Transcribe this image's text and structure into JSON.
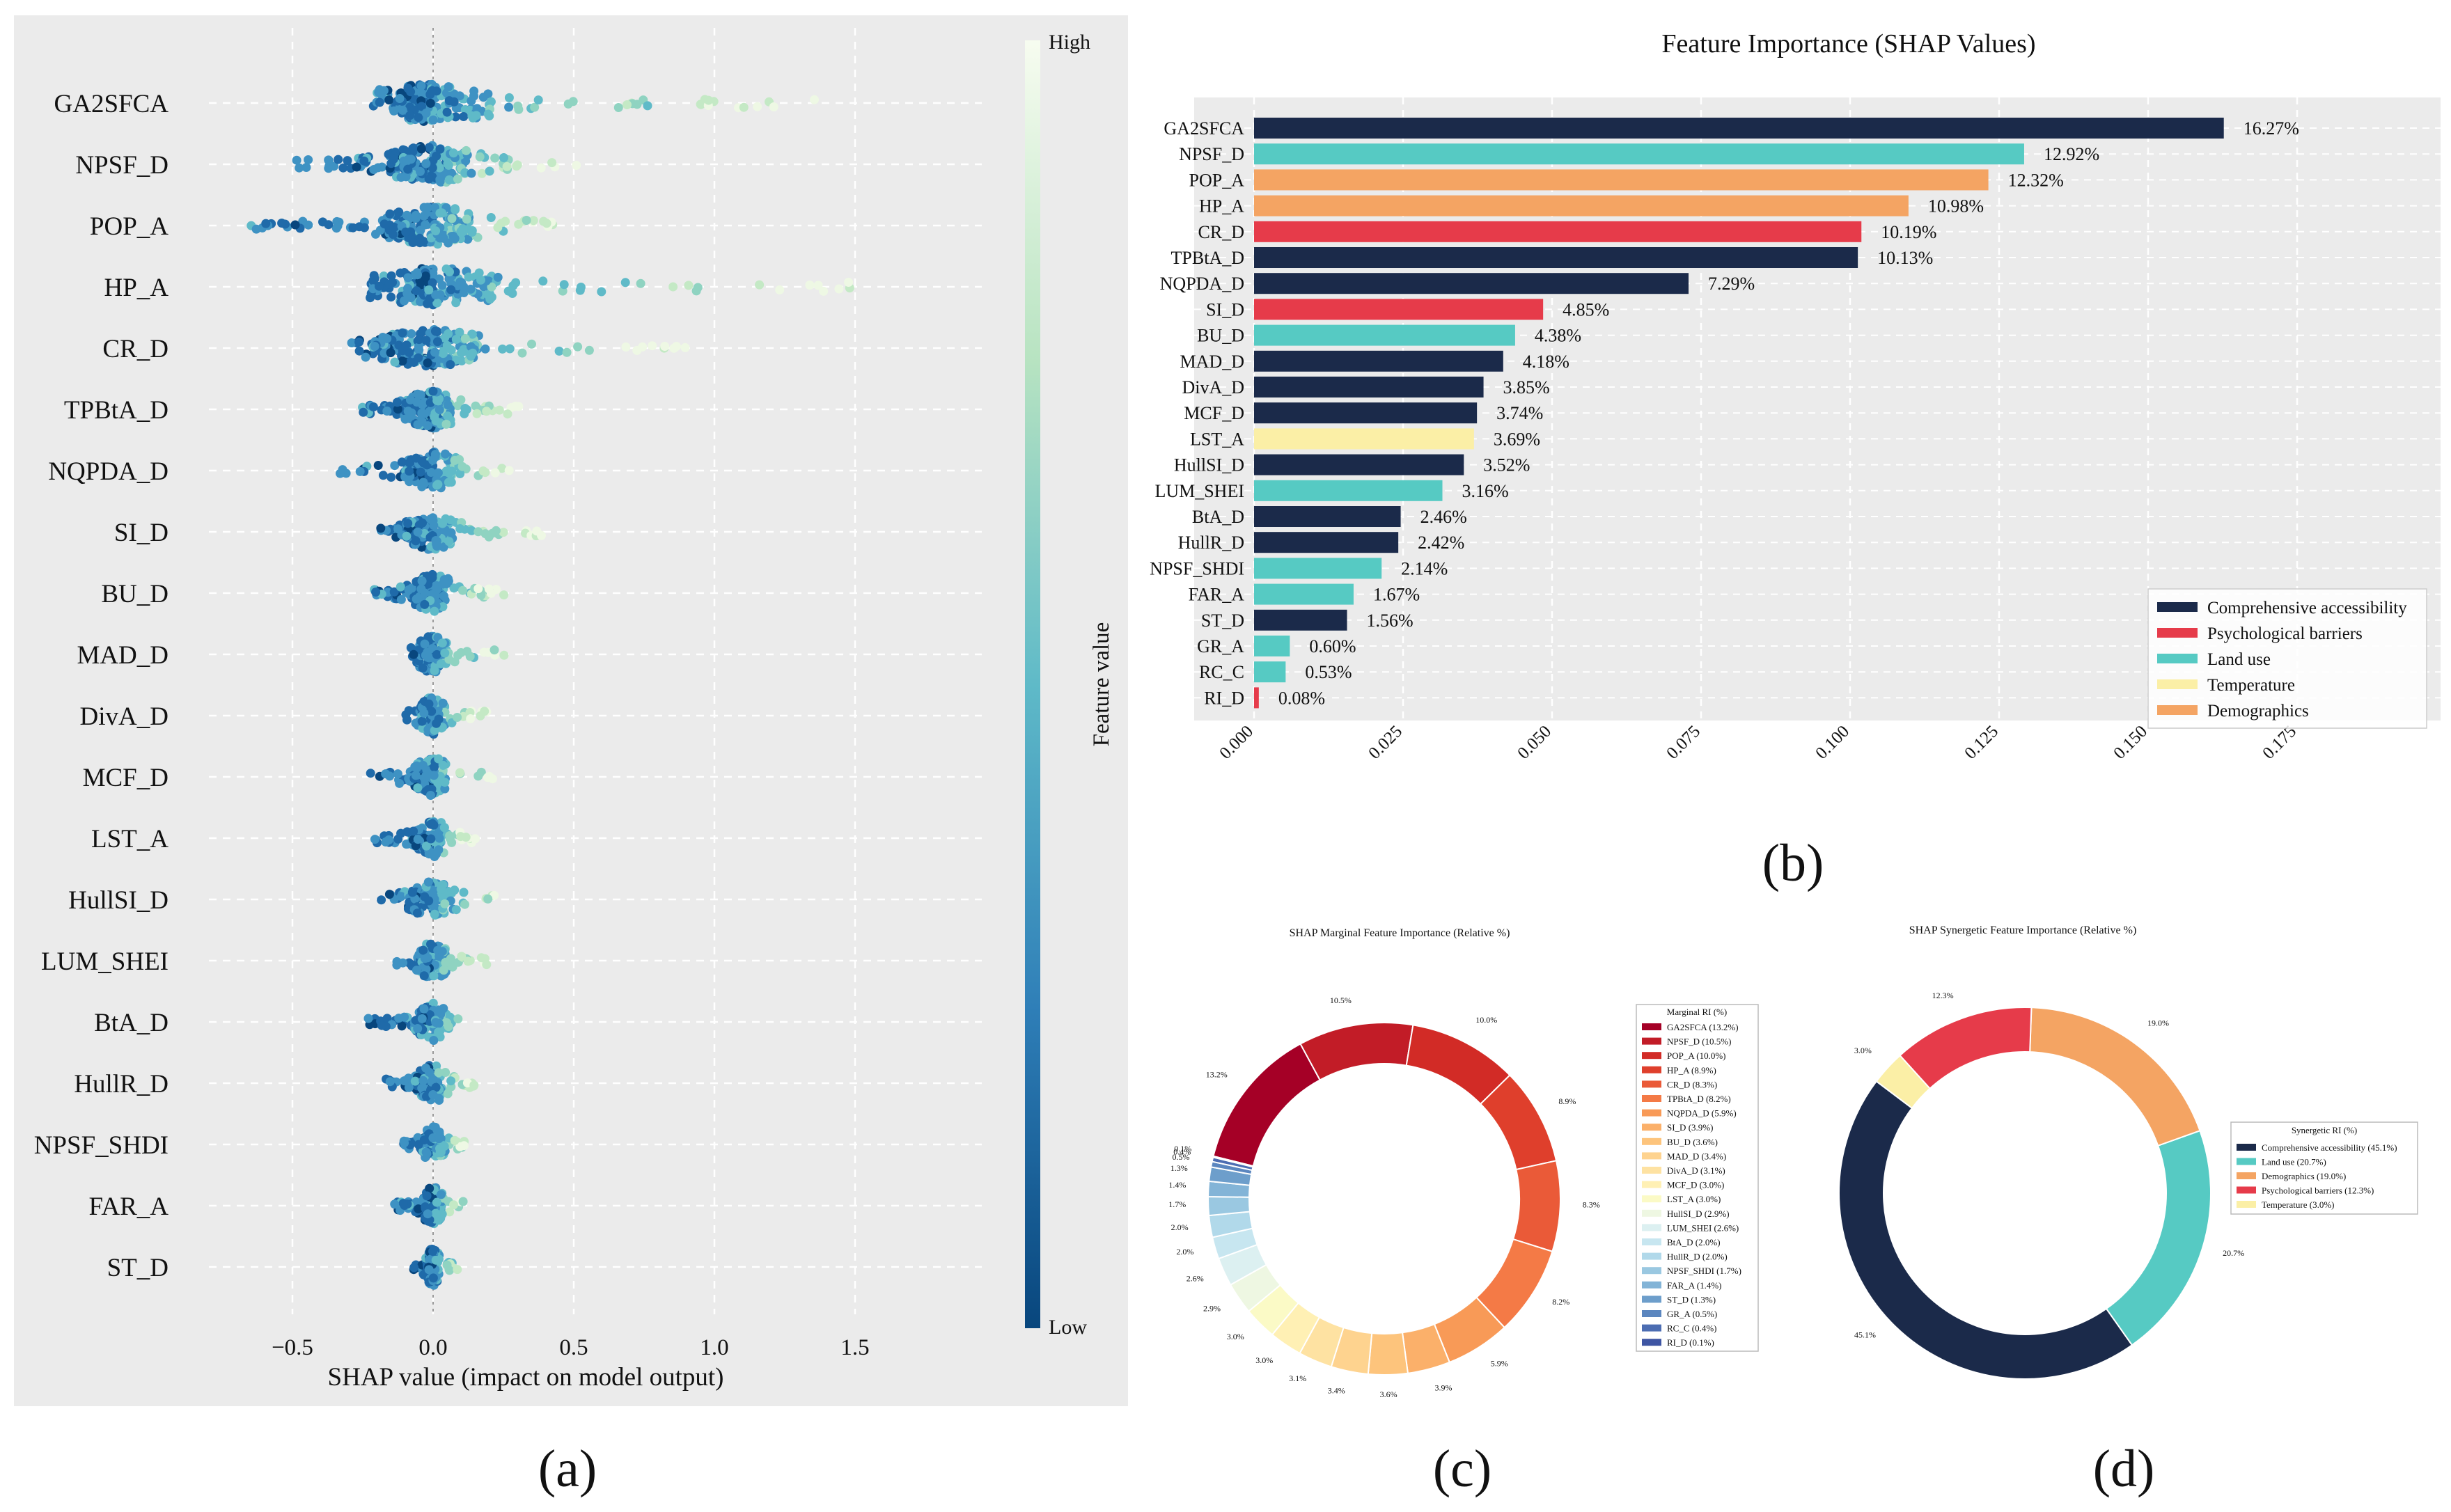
{
  "panels": {
    "a": "(a)",
    "b": "(b)",
    "c": "(c)",
    "d": "(d)"
  },
  "colors": {
    "comprehensive": "#1b2a4a",
    "psychological": "#e63b4a",
    "landuse": "#56cac3",
    "temperature": "#fbefa6",
    "demographics": "#f4a463",
    "panel_bg": "#ebebeb"
  },
  "chart_data": [
    {
      "id": "a",
      "type": "scatter",
      "subtype": "shap-beeswarm",
      "features": [
        "GA2SFCA",
        "NPSF_D",
        "POP_A",
        "HP_A",
        "CR_D",
        "TPBtA_D",
        "NQPDA_D",
        "SI_D",
        "BU_D",
        "MAD_D",
        "DivA_D",
        "MCF_D",
        "LST_A",
        "HullSI_D",
        "LUM_SHEI",
        "BtA_D",
        "HullR_D",
        "NPSF_SHDI",
        "FAR_A",
        "ST_D"
      ],
      "spread": [
        {
          "lo": -0.1,
          "hi": 1.42
        },
        {
          "lo": -0.5,
          "hi": 0.52
        },
        {
          "lo": -0.67,
          "hi": 0.48
        },
        {
          "lo": -0.12,
          "hi": 1.5
        },
        {
          "lo": -0.32,
          "hi": 0.92
        },
        {
          "lo": -0.28,
          "hi": 0.32
        },
        {
          "lo": -0.35,
          "hi": 0.28
        },
        {
          "lo": -0.2,
          "hi": 0.4
        },
        {
          "lo": -0.22,
          "hi": 0.27
        },
        {
          "lo": -0.08,
          "hi": 0.28
        },
        {
          "lo": -0.1,
          "hi": 0.2
        },
        {
          "lo": -0.23,
          "hi": 0.24
        },
        {
          "lo": -0.21,
          "hi": 0.15
        },
        {
          "lo": -0.2,
          "hi": 0.29
        },
        {
          "lo": -0.13,
          "hi": 0.2
        },
        {
          "lo": -0.25,
          "hi": 0.09
        },
        {
          "lo": -0.17,
          "hi": 0.17
        },
        {
          "lo": -0.11,
          "hi": 0.12
        },
        {
          "lo": -0.14,
          "hi": 0.12
        },
        {
          "lo": -0.07,
          "hi": 0.09
        }
      ],
      "xlabel": "SHAP value (impact on model output)",
      "xticks": [
        -0.5,
        0.0,
        0.5,
        1.0,
        1.5
      ],
      "xtick_labels": [
        "−0.5",
        "0.0",
        "0.5",
        "1.0",
        "1.5"
      ],
      "xlim": [
        -0.8,
        1.9
      ],
      "colorbar": {
        "label": "Feature value",
        "high": "High",
        "low": "Low"
      }
    },
    {
      "id": "b",
      "type": "bar",
      "orientation": "horizontal",
      "title": "Feature Importance (SHAP Values)",
      "categories": [
        "GA2SFCA",
        "NPSF_D",
        "POP_A",
        "HP_A",
        "CR_D",
        "TPBtA_D",
        "NQPDA_D",
        "SI_D",
        "BU_D",
        "MAD_D",
        "DivA_D",
        "MCF_D",
        "LST_A",
        "HullSI_D",
        "LUM_SHEI",
        "BtA_D",
        "HullR_D",
        "NPSF_SHDI",
        "FAR_A",
        "ST_D",
        "GR_A",
        "RC_C",
        "RI_D"
      ],
      "values": [
        0.1627,
        0.1292,
        0.1232,
        0.1098,
        0.1019,
        0.1013,
        0.0729,
        0.0485,
        0.0438,
        0.0418,
        0.0385,
        0.0374,
        0.0369,
        0.0352,
        0.0316,
        0.0246,
        0.0242,
        0.0214,
        0.0167,
        0.0156,
        0.006,
        0.0053,
        0.0008
      ],
      "labels": [
        "16.27%",
        "12.92%",
        "12.32%",
        "10.98%",
        "10.19%",
        "10.13%",
        "7.29%",
        "4.85%",
        "4.38%",
        "4.18%",
        "3.85%",
        "3.74%",
        "3.69%",
        "3.52%",
        "3.16%",
        "2.46%",
        "2.42%",
        "2.14%",
        "1.67%",
        "1.56%",
        "0.60%",
        "0.53%",
        "0.08%"
      ],
      "groups": [
        "comprehensive",
        "landuse",
        "demographics",
        "demographics",
        "psychological",
        "comprehensive",
        "comprehensive",
        "psychological",
        "landuse",
        "comprehensive",
        "comprehensive",
        "comprehensive",
        "temperature",
        "comprehensive",
        "landuse",
        "comprehensive",
        "comprehensive",
        "landuse",
        "landuse",
        "comprehensive",
        "landuse",
        "landuse",
        "psychological"
      ],
      "xticks": [
        0.0,
        0.025,
        0.05,
        0.075,
        0.1,
        0.125,
        0.15,
        0.175
      ],
      "xtick_labels": [
        "0.000",
        "0.025",
        "0.050",
        "0.075",
        "0.100",
        "0.125",
        "0.150",
        "0.175"
      ],
      "xlim": [
        0,
        0.195
      ],
      "legend": [
        {
          "group": "comprehensive",
          "label": "Comprehensive accessibility"
        },
        {
          "group": "psychological",
          "label": "Psychological barriers"
        },
        {
          "group": "landuse",
          "label": "Land use"
        },
        {
          "group": "temperature",
          "label": "Temperature"
        },
        {
          "group": "demographics",
          "label": "Demographics"
        }
      ]
    },
    {
      "id": "c",
      "type": "pie",
      "subtype": "donut",
      "title": "SHAP Marginal Feature Importance (Relative %)",
      "legend_title": "Marginal RI (%)",
      "slices": [
        {
          "label": "GA2SFCA (13.2%)",
          "value": 13.2,
          "pct": "13.2%",
          "color": "#a50026"
        },
        {
          "label": "NPSF_D (10.5%)",
          "value": 10.5,
          "pct": "10.5%",
          "color": "#c21c27"
        },
        {
          "label": "POP_A (10.0%)",
          "value": 10.0,
          "pct": "10.0%",
          "color": "#d22b26"
        },
        {
          "label": "HP_A (8.9%)",
          "value": 8.9,
          "pct": "8.9%",
          "color": "#df3f2c"
        },
        {
          "label": "CR_D (8.3%)",
          "value": 8.3,
          "pct": "8.3%",
          "color": "#ea5a38"
        },
        {
          "label": "TPBtA_D (8.2%)",
          "value": 8.2,
          "pct": "8.2%",
          "color": "#f47a46"
        },
        {
          "label": "NQPDA_D (5.9%)",
          "value": 5.9,
          "pct": "5.9%",
          "color": "#f89a57"
        },
        {
          "label": "SI_D (3.9%)",
          "value": 3.9,
          "pct": "3.9%",
          "color": "#fbb06a"
        },
        {
          "label": "BU_D (3.6%)",
          "value": 3.6,
          "pct": "3.6%",
          "color": "#fdc47c"
        },
        {
          "label": "MAD_D (3.4%)",
          "value": 3.4,
          "pct": "3.4%",
          "color": "#fed38f"
        },
        {
          "label": "DivA_D (3.1%)",
          "value": 3.1,
          "pct": "3.1%",
          "color": "#fee2a2"
        },
        {
          "label": "MCF_D (3.0%)",
          "value": 3.0,
          "pct": "3.0%",
          "color": "#fff0b4"
        },
        {
          "label": "LST_A (3.0%)",
          "value": 3.0,
          "pct": "3.0%",
          "color": "#fbfac6"
        },
        {
          "label": "HullSI_D (2.9%)",
          "value": 2.9,
          "pct": "2.9%",
          "color": "#eef7e2"
        },
        {
          "label": "LUM_SHEI (2.6%)",
          "value": 2.6,
          "pct": "2.6%",
          "color": "#dcf0f1"
        },
        {
          "label": "BtA_D (2.0%)",
          "value": 2.0,
          "pct": "2.0%",
          "color": "#c7e6f0"
        },
        {
          "label": "HullR_D (2.0%)",
          "value": 2.0,
          "pct": "2.0%",
          "color": "#b1d9ea"
        },
        {
          "label": "NPSF_SHDI (1.7%)",
          "value": 1.7,
          "pct": "1.7%",
          "color": "#9ac8e1"
        },
        {
          "label": "FAR_A (1.4%)",
          "value": 1.4,
          "pct": "1.4%",
          "color": "#83b4d7"
        },
        {
          "label": "ST_D (1.3%)",
          "value": 1.3,
          "pct": "1.3%",
          "color": "#6d9ecb"
        },
        {
          "label": "GR_A (0.5%)",
          "value": 0.5,
          "pct": "0.5%",
          "color": "#5b86bf"
        },
        {
          "label": "RC_C (0.4%)",
          "value": 0.4,
          "pct": "0.4%",
          "color": "#4c6db2"
        },
        {
          "label": "RI_D (0.1%)",
          "value": 0.1,
          "pct": "0.1%",
          "color": "#3e55a3"
        }
      ]
    },
    {
      "id": "d",
      "type": "pie",
      "subtype": "donut",
      "title": "SHAP Synergetic Feature Importance (Relative %)",
      "legend_title": "Synergetic RI (%)",
      "slices": [
        {
          "label": "Comprehensive accessibility (45.1%)",
          "value": 45.1,
          "pct": "45.1%",
          "color": "#1b2a4a"
        },
        {
          "label": "Land use (20.7%)",
          "value": 20.7,
          "pct": "20.7%",
          "color": "#56cac3"
        },
        {
          "label": "Demographics (19.0%)",
          "value": 19.0,
          "pct": "19.0%",
          "color": "#f4a463"
        },
        {
          "label": "Psychological barriers (12.3%)",
          "value": 12.3,
          "pct": "12.3%",
          "color": "#e63b4a"
        },
        {
          "label": "Temperature (3.0%)",
          "value": 3.0,
          "pct": "3.0%",
          "color": "#fbefa6"
        }
      ]
    }
  ]
}
